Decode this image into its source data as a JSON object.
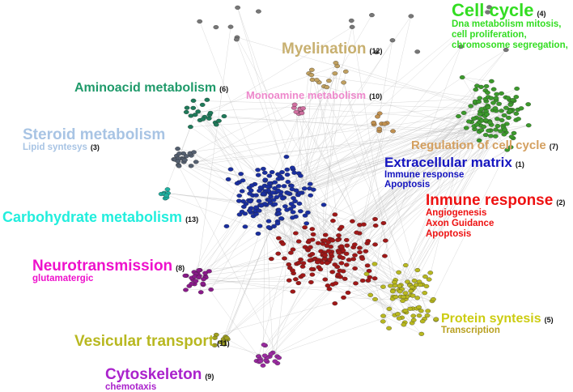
{
  "clusters": [
    {
      "id": "cell-cycle",
      "title": "Cell cycle",
      "number": "(4)",
      "subtitle": [
        "Dna metabolism mitosis,",
        "cell proliferation,",
        "chromosome segregation,"
      ],
      "color": "#33dd22",
      "node_color": "#3c9a2c"
    },
    {
      "id": "myelination",
      "title": "Myelination",
      "number": "(12)",
      "subtitle": [],
      "color": "#c8b070",
      "node_color": "#c0a060"
    },
    {
      "id": "aminoacid-metabolism",
      "title": "Aminoacid metabolism",
      "number": "(6)",
      "subtitle": [],
      "color": "#1f9a6a",
      "node_color": "#1f7a5a"
    },
    {
      "id": "monoamine-metabolism",
      "title": "Monoamine metabolism",
      "number": "(10)",
      "subtitle": [],
      "color": "#ee88cc",
      "node_color": "#d070a0"
    },
    {
      "id": "steroid-metabolism",
      "title": "Steroid metabolism",
      "number": "(3)",
      "subtitle": [
        "Lipid syntesys"
      ],
      "color": "#a8c4e4",
      "node_color": "#556070"
    },
    {
      "id": "regulation-of-cell-cycle",
      "title": "Regulation of cell cycle",
      "number": "(7)",
      "subtitle": [],
      "color": "#d4a060",
      "node_color": "#c09050"
    },
    {
      "id": "extracellular-matrix",
      "title": "Extracellular matrix",
      "number": "(1)",
      "subtitle": [
        "Immune response",
        "Apoptosis"
      ],
      "color": "#1515c0",
      "node_color": "#1a2fa0"
    },
    {
      "id": "inmune-response",
      "title": "Inmune response",
      "number": "(2)",
      "subtitle": [
        "Angiogenesis",
        "Axon Guidance",
        "Apoptosis"
      ],
      "color": "#ee1111",
      "node_color": "#a01818"
    },
    {
      "id": "carbohydrate-metabolism",
      "title": "Carbohydrate metabolism",
      "number": "(13)",
      "subtitle": [],
      "color": "#22eedd",
      "node_color": "#20b0a0"
    },
    {
      "id": "neurotransmission",
      "title": "Neurotransmission",
      "number": "(8)",
      "subtitle": [
        "glutamatergic"
      ],
      "color": "#ee11cc",
      "node_color": "#8a1a8a"
    },
    {
      "id": "protein-syntesis",
      "title": "Protein syntesis",
      "number": "(5)",
      "subtitle": [
        "Transcription"
      ],
      "color": "#cccc11",
      "node_color": "#b8b820"
    },
    {
      "id": "vesicular-transport",
      "title": "Vesicular transport",
      "number": "(11)",
      "subtitle": [],
      "color": "#b8b820",
      "node_color": "#a0a020"
    },
    {
      "id": "cytoskeleton",
      "title": "Cytoskeleton",
      "number": "(9)",
      "subtitle": [
        "chemotaxis"
      ],
      "color": "#aa22cc",
      "node_color": "#9a2aa0"
    }
  ],
  "edge_color": "#bbbbbb"
}
